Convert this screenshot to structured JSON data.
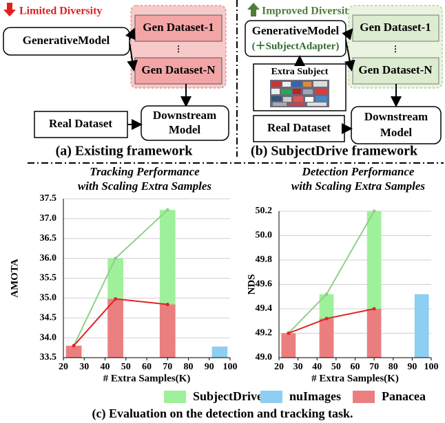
{
  "diagram_a": {
    "badge": "Limited Diversity",
    "model": "GenerativeModel",
    "gen_first": "Gen Dataset-1",
    "dots": "⋮",
    "gen_last": "Gen Dataset-N",
    "real": "Real Dataset",
    "downstream": [
      "Downstream",
      "Model"
    ],
    "caption": "(a) Existing framework"
  },
  "diagram_b": {
    "badge": "Improved Diversity",
    "model": "GenerativeModel",
    "adapter": "(＋SubjectAdapter)",
    "gen_first": "Gen Dataset-1",
    "dots": "⋮",
    "gen_last": "Gen Dataset-N",
    "extra": "Extra Subject",
    "real": "Real Dataset",
    "downstream": [
      "Downstream",
      "Model"
    ],
    "caption": "(b) SubjectDrive framework"
  },
  "legend": [
    {
      "name": "SubjectDrive",
      "color": "#9ff09a"
    },
    {
      "name": "nuImages",
      "color": "#8ccff2"
    },
    {
      "name": "Panacea",
      "color": "#eb7f80"
    }
  ],
  "caption": "(c) Evaluation on the detection and tracking task.",
  "chart_data": [
    {
      "type": "bar",
      "title": "Tracking Performance",
      "subtitle": "with Scaling Extra Samples",
      "x_label": "# Extra Samples(K)",
      "y_label": "AMOTA",
      "xlim": [
        20,
        100
      ],
      "xticks": [
        20,
        30,
        40,
        50,
        60,
        70,
        80,
        90,
        100
      ],
      "ylim": [
        33.5,
        37.5
      ],
      "yticks": [
        33.5,
        {
          "value": 34,
          "label": "34.0"
        },
        34.5,
        {
          "value": 35,
          "label": "35.0"
        },
        35.5,
        {
          "value": 36,
          "label": "36.0"
        },
        36.5,
        {
          "value": 37,
          "label": "37.0"
        },
        37.5
      ],
      "grid": true,
      "series": [
        {
          "color": "#9ff09a",
          "line_color": "#8fd08a",
          "x": [
            25,
            45,
            70
          ],
          "values": [
            33.8,
            36.0,
            37.22
          ],
          "line": true
        },
        {
          "color": "#eb7f80",
          "line_color": "#e02222",
          "x": [
            25,
            45,
            70
          ],
          "values": [
            33.8,
            34.98,
            34.84
          ],
          "line": true
        },
        {
          "color": "#8ccff2",
          "x": [
            95
          ],
          "values": [
            33.78
          ],
          "line": false
        }
      ]
    },
    {
      "type": "bar",
      "title": "Detection Performance",
      "subtitle": "with Scaling Extra Samples",
      "x_label": "# Extra Samples(K)",
      "y_label": "NDS",
      "xlim": [
        20,
        100
      ],
      "xticks": [
        20,
        30,
        40,
        50,
        60,
        70,
        80,
        90,
        100
      ],
      "ylim": [
        49.0,
        50.2
      ],
      "yticks": [
        {
          "value": 49,
          "label": "49.0"
        },
        49.2,
        49.4,
        49.6,
        49.8,
        {
          "value": 50,
          "label": "50.0"
        },
        50.2
      ],
      "grid": true,
      "series": [
        {
          "color": "#9ff09a",
          "line_color": "#8fd08a",
          "x": [
            25,
            45,
            70
          ],
          "values": [
            49.2,
            49.52,
            50.2
          ],
          "line": true
        },
        {
          "color": "#eb7f80",
          "line_color": "#e02222",
          "x": [
            25,
            45,
            70
          ],
          "values": [
            49.2,
            49.32,
            49.4
          ],
          "line": true
        },
        {
          "color": "#8ccff2",
          "x": [
            95
          ],
          "values": [
            49.52
          ],
          "line": false
        }
      ]
    }
  ]
}
